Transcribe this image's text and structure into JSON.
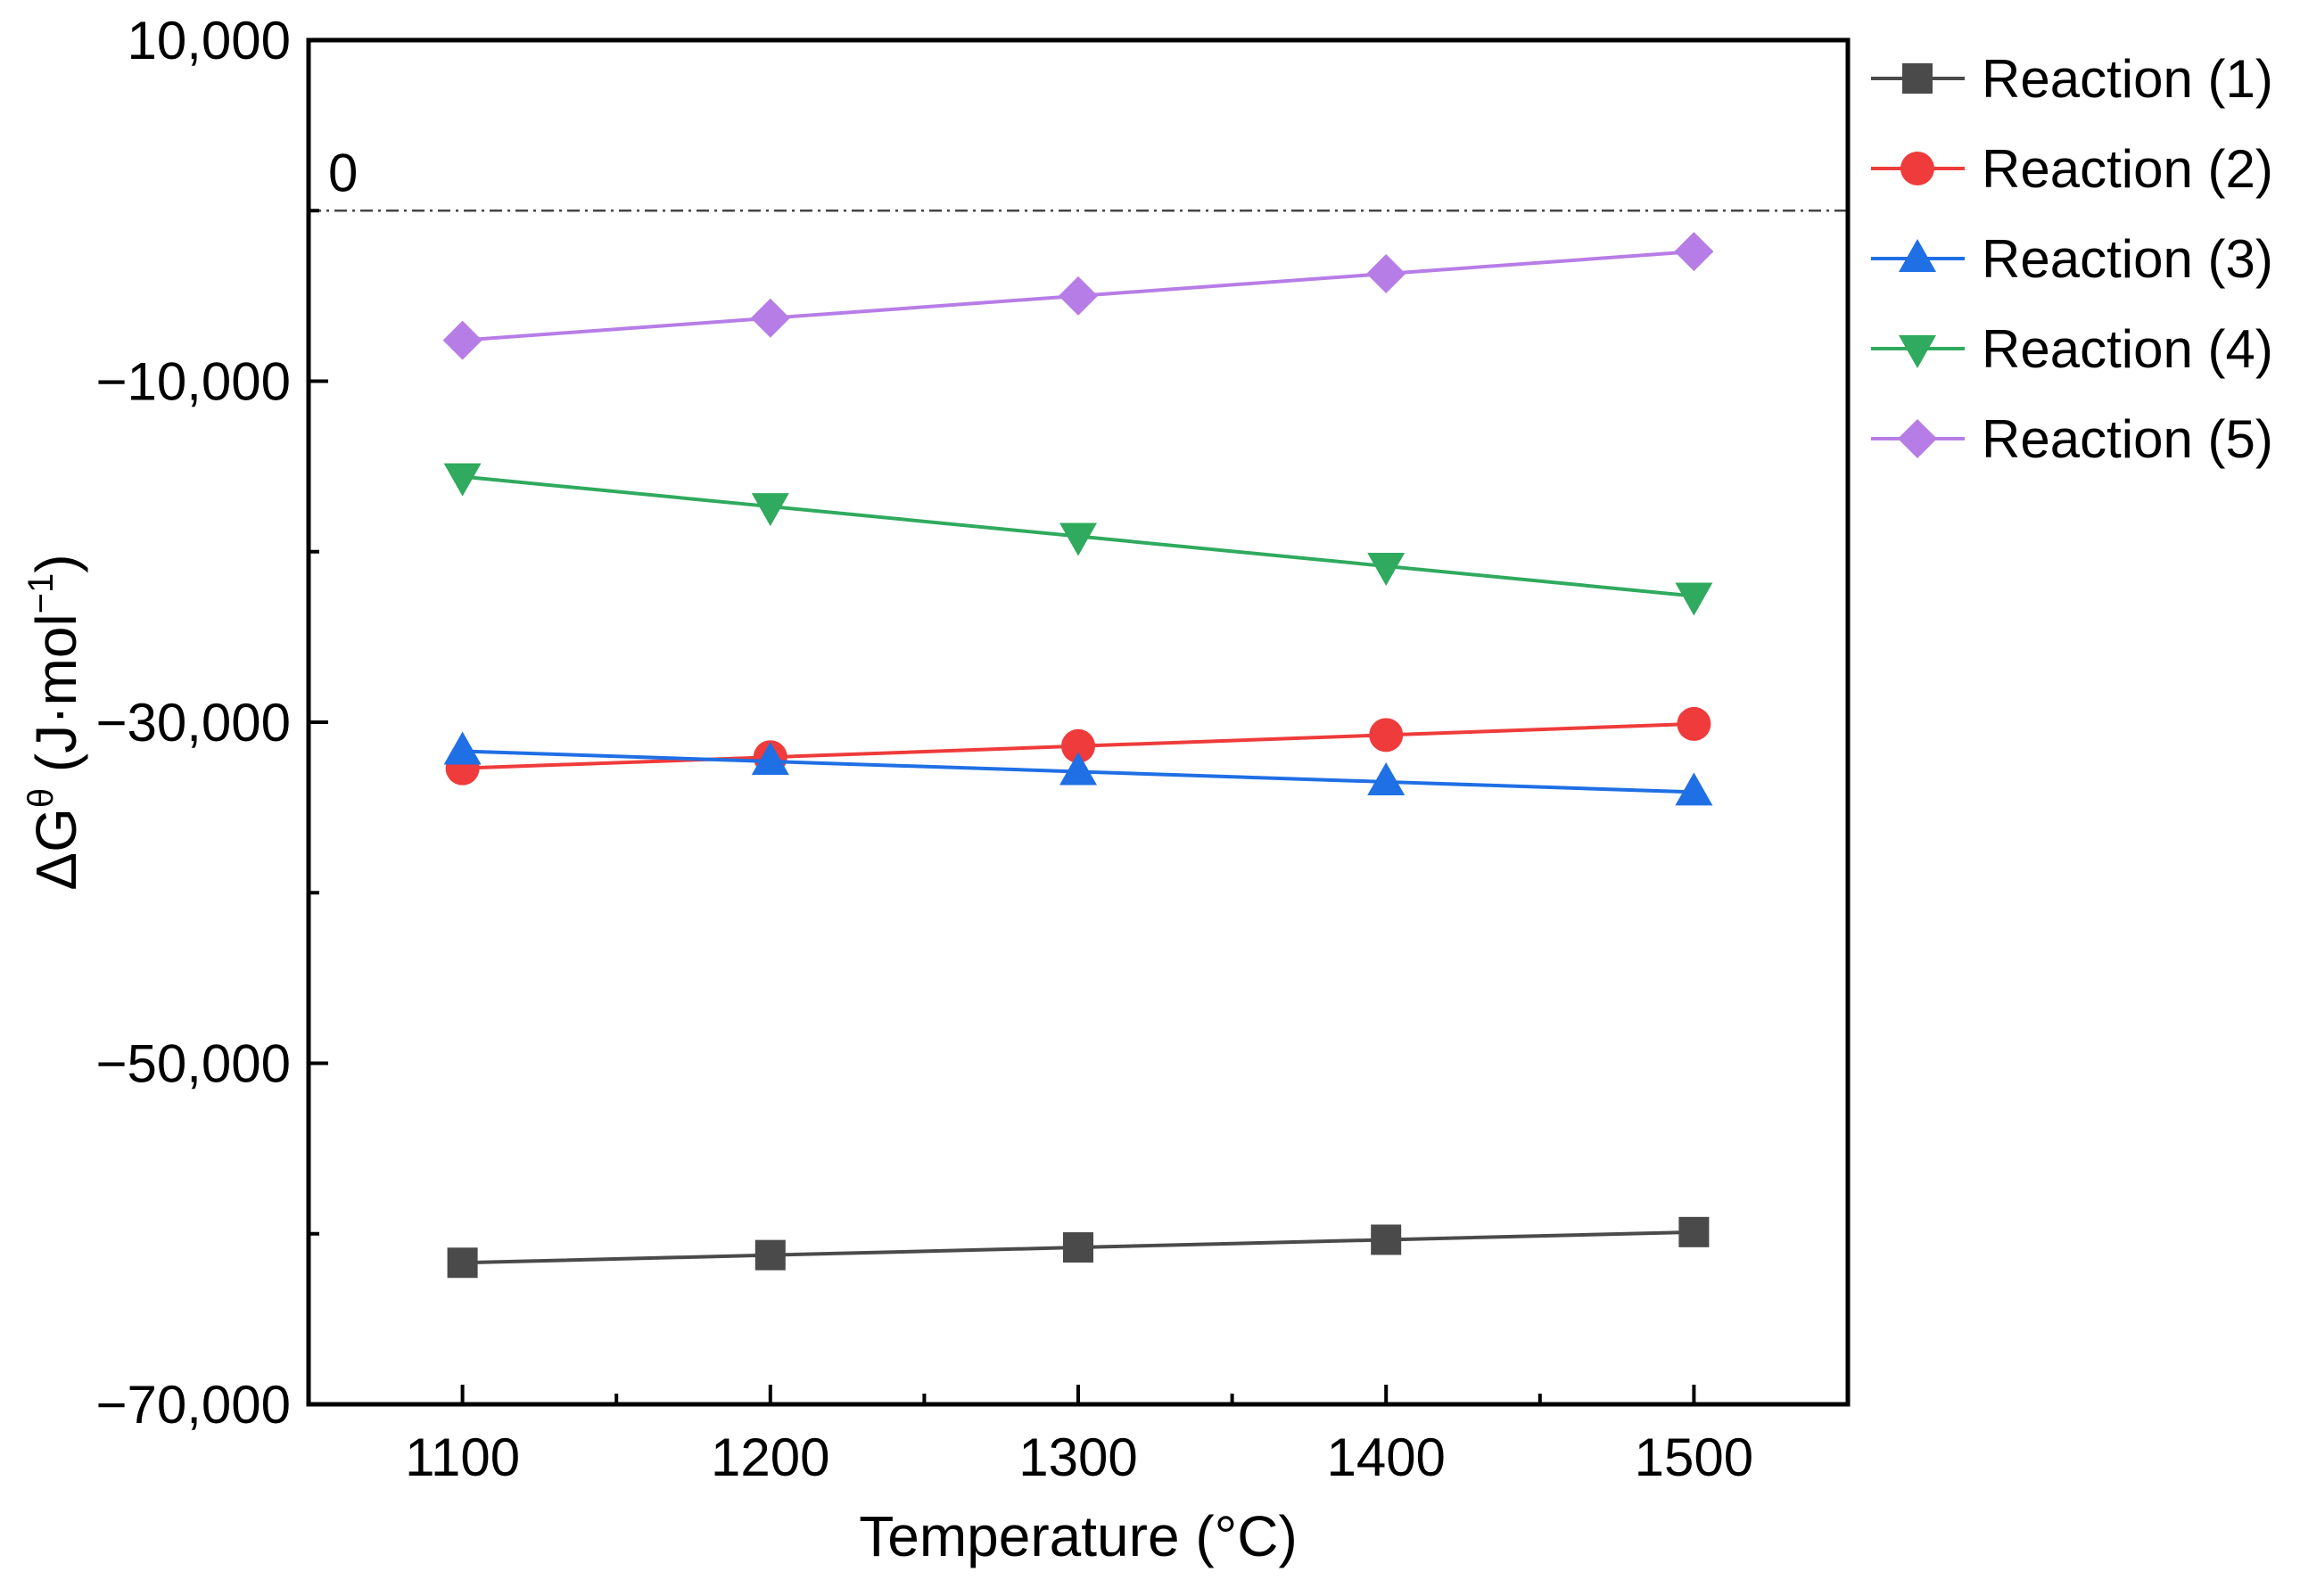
{
  "chart_data": {
    "type": "line",
    "x": [
      1100,
      1200,
      1300,
      1400,
      1500
    ],
    "xlabel": "Temperature (°C)",
    "ylabel": {
      "prefix": "ΔG",
      "superscript": "θ",
      "unit_open": " (J·mol",
      "unit_sup": "−1",
      "unit_close": ")"
    },
    "xlim": [
      1050,
      1550
    ],
    "ylim": [
      -70000,
      10000
    ],
    "xticks": [
      1100,
      1200,
      1300,
      1400,
      1500
    ],
    "xtick_labels": [
      "1100",
      "1200",
      "1300",
      "1400",
      "1500"
    ],
    "yticks": [
      10000,
      -10000,
      -30000,
      -50000,
      -70000
    ],
    "ytick_labels": [
      "10,000",
      "−10,000",
      "−30,000",
      "−50,000",
      "−70,000"
    ],
    "reference_line": {
      "y": 0,
      "label": "0",
      "style": "dash-dot"
    },
    "legend_position": "outside-right-top",
    "series": [
      {
        "name": "Reaction (1)",
        "color": "#4a4a4a",
        "marker": "square",
        "values": [
          -61700,
          -61250,
          -60800,
          -60350,
          -59900
        ]
      },
      {
        "name": "Reaction (2)",
        "color": "#ef3b3b",
        "marker": "circle",
        "values": [
          -32700,
          -32050,
          -31400,
          -30750,
          -30100
        ]
      },
      {
        "name": "Reaction (3)",
        "color": "#1f6fe5",
        "marker": "triangle-up",
        "values": [
          -31700,
          -32300,
          -32900,
          -33500,
          -34100
        ]
      },
      {
        "name": "Reaction (4)",
        "color": "#2faa5e",
        "marker": "triangle-down",
        "values": [
          -15600,
          -17350,
          -19100,
          -20850,
          -22600
        ]
      },
      {
        "name": "Reaction (5)",
        "color": "#b77de6",
        "marker": "diamond",
        "values": [
          -7600,
          -6300,
          -5000,
          -3700,
          -2400
        ]
      }
    ]
  }
}
